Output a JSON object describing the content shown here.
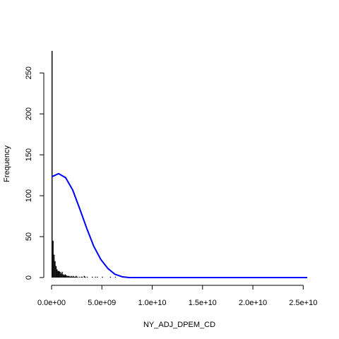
{
  "chart_data": {
    "type": "bar",
    "xlabel": "NY_ADJ_DPEM_CD",
    "ylabel": "Frequency",
    "xlim": [
      0,
      25400000000
    ],
    "ylim": [
      0,
      277
    ],
    "x_ticks": [
      0,
      5000000000,
      10000000000,
      15000000000,
      20000000000,
      25000000000
    ],
    "x_tick_labels": [
      "0.0e+00",
      "5.0e+09",
      "1.0e+10",
      "1.5e+10",
      "2.0e+10",
      "2.5e+10"
    ],
    "y_ticks": [
      0,
      50,
      100,
      150,
      200,
      250
    ],
    "y_tick_labels": [
      "0",
      "50",
      "100",
      "150",
      "200",
      "250"
    ],
    "grid": false,
    "series": [
      {
        "type": "histogram",
        "color": "#000000",
        "bin_width": 100000000,
        "bin_starts": [
          0,
          100000000,
          200000000,
          300000000,
          400000000,
          500000000,
          600000000,
          700000000,
          800000000,
          900000000,
          1000000000,
          1100000000,
          1200000000,
          1300000000,
          1400000000,
          1500000000,
          1600000000,
          1700000000,
          1800000000,
          1900000000,
          2000000000,
          2100000000,
          2200000000,
          2300000000,
          2400000000,
          2500000000,
          2700000000,
          2900000000,
          3000000000,
          3200000000,
          3300000000,
          3500000000,
          4000000000,
          4300000000,
          4500000000,
          5000000000,
          5800000000,
          6300000000,
          7000000000
        ],
        "values": [
          277,
          45,
          28,
          20,
          14,
          10,
          8,
          8,
          7,
          5,
          7,
          4,
          3,
          4,
          3,
          2,
          2,
          2,
          1,
          2,
          1,
          2,
          1,
          1,
          2,
          1,
          1,
          1,
          1,
          2,
          1,
          1,
          1,
          1,
          1,
          1,
          1,
          1,
          1
        ]
      },
      {
        "type": "line",
        "color": "#0000ff",
        "x": [
          0,
          700000000,
          1400000000,
          2100000000,
          2800000000,
          3500000000,
          4200000000,
          4900000000,
          5600000000,
          6300000000,
          7000000000,
          7700000000,
          8400000000,
          9100000000,
          9800000000,
          12000000000,
          15000000000,
          18000000000,
          21000000000,
          24000000000,
          25400000000
        ],
        "y": [
          123,
          127,
          122,
          107,
          84,
          60,
          38,
          22,
          11,
          4,
          1,
          0,
          0,
          0,
          0,
          0,
          0,
          0,
          0,
          0,
          0
        ]
      }
    ]
  }
}
